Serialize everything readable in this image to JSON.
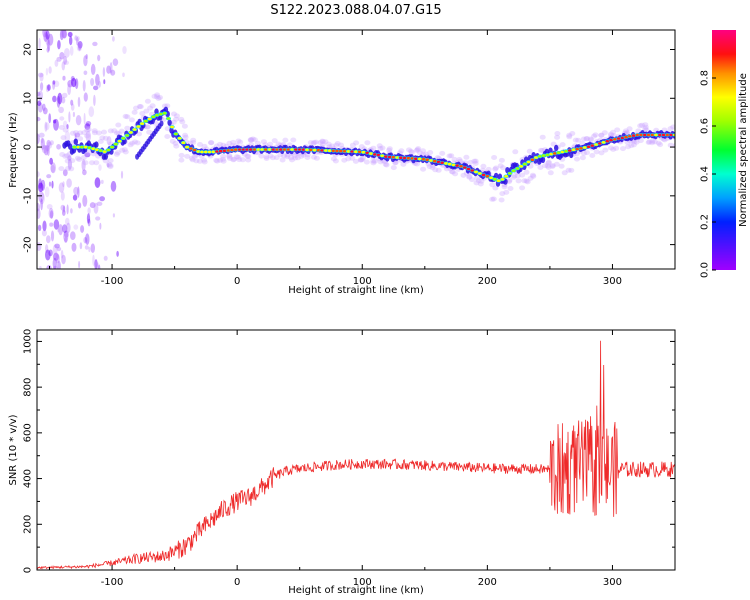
{
  "title": "S122.2023.088.04.07.G15",
  "colors": {
    "snr_line": "#ee2a2a",
    "axis": "#000000",
    "background": "#ffffff"
  },
  "chart_data": [
    {
      "type": "heatmap",
      "name": "spectrogram",
      "xlabel": "Height of straight line (km)",
      "ylabel": "Frequency (Hz)",
      "xlim": [
        -160,
        350
      ],
      "ylim": [
        -25,
        24
      ],
      "x_ticks": [
        -100,
        0,
        100,
        200,
        300
      ],
      "y_ticks": [
        -20,
        -10,
        0,
        10,
        20
      ],
      "colorbar": {
        "label": "Normalized spectral amplitude",
        "range": [
          0,
          1
        ],
        "ticks": [
          "0.0",
          "0.2",
          "0.4",
          "0.6",
          "0.8"
        ],
        "colormap": "rainbow (purple-blue-cyan-green-yellow-red-magenta)"
      },
      "ridge": {
        "x": [
          -135,
          -120,
          -105,
          -95,
          -85,
          -75,
          -65,
          -57,
          -50,
          -40,
          -30,
          -20,
          0,
          50,
          100,
          120,
          150,
          180,
          200,
          210,
          220,
          240,
          260,
          280,
          300,
          320,
          350
        ],
        "y": [
          0,
          0,
          -1,
          1,
          3,
          5,
          6.5,
          7,
          3,
          0,
          -1,
          -1,
          -0.5,
          -0.5,
          -1,
          -2,
          -2.5,
          -4,
          -6,
          -7,
          -5,
          -2,
          -1,
          0,
          1.5,
          2.5,
          2.5
        ]
      }
    },
    {
      "type": "line",
      "name": "snr",
      "xlabel": "Height of straight line (km)",
      "ylabel": "SNR (10 * v/v)",
      "xlim": [
        -160,
        350
      ],
      "ylim": [
        0,
        1050
      ],
      "x_ticks": [
        -100,
        0,
        100,
        200,
        300
      ],
      "y_ticks": [
        0,
        200,
        400,
        600,
        800,
        1000
      ],
      "envelope": {
        "x": [
          -160,
          -120,
          -100,
          -80,
          -60,
          -50,
          -40,
          -30,
          -20,
          -10,
          0,
          10,
          20,
          30,
          40,
          60,
          80,
          100,
          140,
          160,
          200,
          250,
          255,
          270,
          290,
          300,
          320,
          350
        ],
        "y": [
          10,
          15,
          30,
          50,
          60,
          80,
          110,
          170,
          220,
          270,
          300,
          320,
          360,
          410,
          435,
          450,
          460,
          465,
          460,
          455,
          445,
          440,
          430,
          450,
          440,
          440,
          440,
          440
        ]
      }
    }
  ]
}
